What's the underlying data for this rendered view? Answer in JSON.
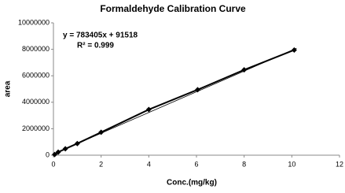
{
  "chart_data": {
    "type": "scatter-line",
    "title": "Formaldehyde Calibration Curve",
    "x_label": "Conc.(mg/kg)",
    "y_label": "area",
    "annotations": [
      "y = 783405x  + 91518",
      "R² = 0.999"
    ],
    "x": [
      0.05,
      0.2,
      0.5,
      1.0,
      2.0,
      4.0,
      6.05,
      8.0,
      10.1
    ],
    "series": [
      {
        "color": "#000000",
        "values": [
          50000,
          230000,
          480000,
          880000,
          1730000,
          3450000,
          4950000,
          6450000,
          7950000
        ]
      }
    ],
    "trendline": {
      "color": "#000000",
      "x": [
        0,
        10.2
      ],
      "values": [
        91518,
        8082249
      ]
    },
    "xlim": [
      0,
      12
    ],
    "xticks": [
      0,
      2,
      4,
      6,
      8,
      10,
      12
    ],
    "ylim": [
      0,
      10000000
    ],
    "yticks": [
      0,
      2000000,
      4000000,
      6000000,
      8000000,
      10000000
    ],
    "grid": false
  }
}
